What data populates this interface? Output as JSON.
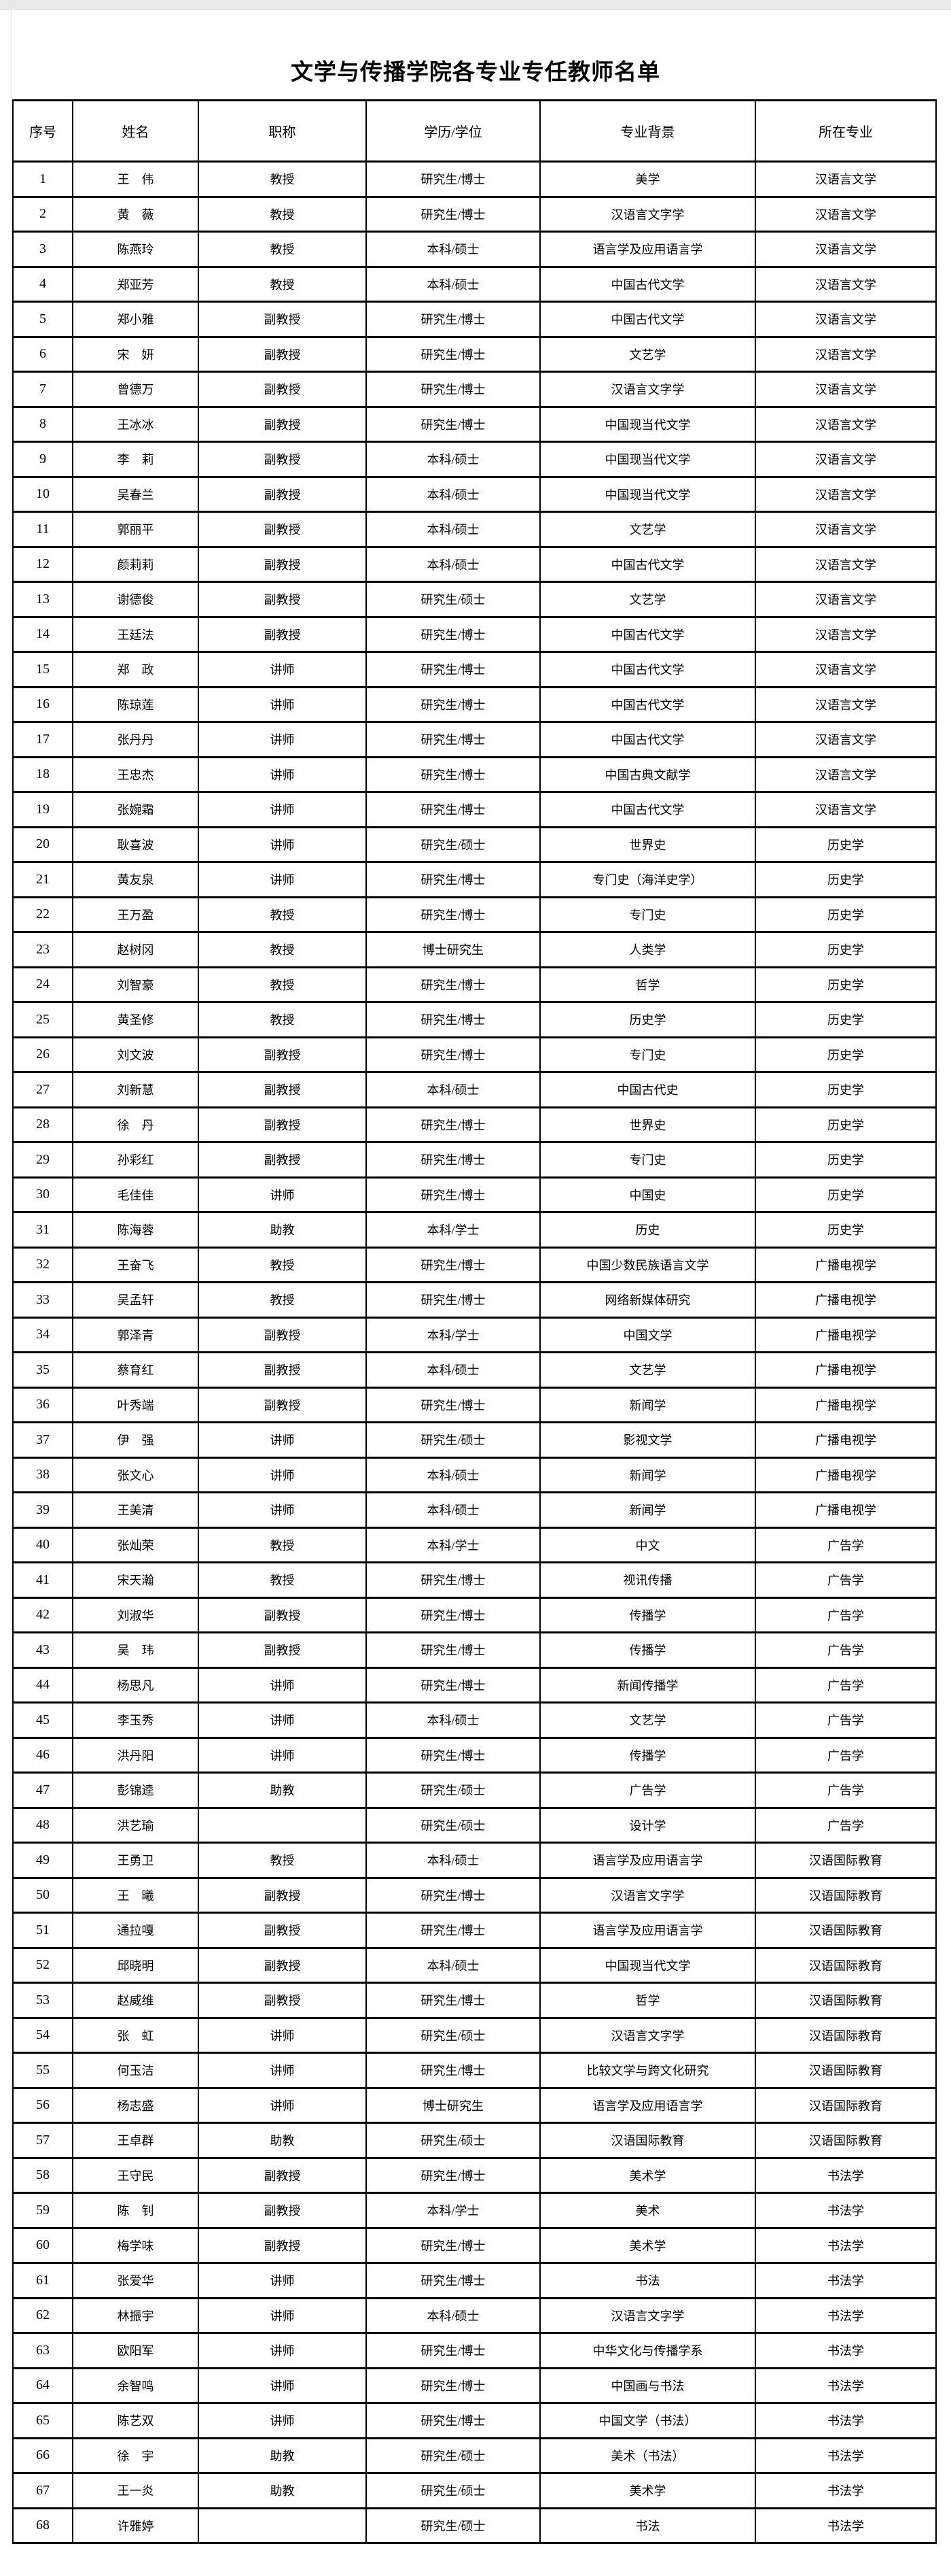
{
  "page": {
    "title": "文学与传播学院各专业专任教师名单"
  },
  "table": {
    "headers": [
      "序号",
      "姓名",
      "职称",
      "学历/学位",
      "专业背景",
      "所在专业"
    ],
    "rows": [
      [
        "1",
        "王　伟",
        "教授",
        "研究生/博士",
        "美学",
        "汉语言文学"
      ],
      [
        "2",
        "黄　薇",
        "教授",
        "研究生/博士",
        "汉语言文字学",
        "汉语言文学"
      ],
      [
        "3",
        "陈燕玲",
        "教授",
        "本科/硕士",
        "语言学及应用语言学",
        "汉语言文学"
      ],
      [
        "4",
        "郑亚芳",
        "教授",
        "本科/硕士",
        "中国古代文学",
        "汉语言文学"
      ],
      [
        "5",
        "郑小雅",
        "副教授",
        "研究生/博士",
        "中国古代文学",
        "汉语言文学"
      ],
      [
        "6",
        "宋　妍",
        "副教授",
        "研究生/博士",
        "文艺学",
        "汉语言文学"
      ],
      [
        "7",
        "曾德万",
        "副教授",
        "研究生/博士",
        "汉语言文字学",
        "汉语言文学"
      ],
      [
        "8",
        "王冰冰",
        "副教授",
        "研究生/博士",
        "中国现当代文学",
        "汉语言文学"
      ],
      [
        "9",
        "李　莉",
        "副教授",
        "本科/硕士",
        "中国现当代文学",
        "汉语言文学"
      ],
      [
        "10",
        "吴春兰",
        "副教授",
        "本科/硕士",
        "中国现当代文学",
        "汉语言文学"
      ],
      [
        "11",
        "郭丽平",
        "副教授",
        "本科/硕士",
        "文艺学",
        "汉语言文学"
      ],
      [
        "12",
        "颜莉莉",
        "副教授",
        "本科/硕士",
        "中国古代文学",
        "汉语言文学"
      ],
      [
        "13",
        "谢德俊",
        "副教授",
        "研究生/硕士",
        "文艺学",
        "汉语言文学"
      ],
      [
        "14",
        "王廷法",
        "副教授",
        "研究生/博士",
        "中国古代文学",
        "汉语言文学"
      ],
      [
        "15",
        "郑　政",
        "讲师",
        "研究生/博士",
        "中国古代文学",
        "汉语言文学"
      ],
      [
        "16",
        "陈琼莲",
        "讲师",
        "研究生/博士",
        "中国古代文学",
        "汉语言文学"
      ],
      [
        "17",
        "张丹丹",
        "讲师",
        "研究生/博士",
        "中国古代文学",
        "汉语言文学"
      ],
      [
        "18",
        "王忠杰",
        "讲师",
        "研究生/博士",
        "中国古典文献学",
        "汉语言文学"
      ],
      [
        "19",
        "张婉霜",
        "讲师",
        "研究生/博士",
        "中国古代文学",
        "汉语言文学"
      ],
      [
        "20",
        "耿喜波",
        "讲师",
        "研究生/硕士",
        "世界史",
        "历史学"
      ],
      [
        "21",
        "黄友泉",
        "讲师",
        "研究生/博士",
        "专门史（海洋史学）",
        "历史学"
      ],
      [
        "22",
        "王万盈",
        "教授",
        "研究生/博士",
        "专门史",
        "历史学"
      ],
      [
        "23",
        "赵树冈",
        "教授",
        "博士研究生",
        "人类学",
        "历史学"
      ],
      [
        "24",
        "刘智豪",
        "教授",
        "研究生/博士",
        "哲学",
        "历史学"
      ],
      [
        "25",
        "黄圣修",
        "教授",
        "研究生/博士",
        "历史学",
        "历史学"
      ],
      [
        "26",
        "刘文波",
        "副教授",
        "研究生/博士",
        "专门史",
        "历史学"
      ],
      [
        "27",
        "刘新慧",
        "副教授",
        "本科/硕士",
        "中国古代史",
        "历史学"
      ],
      [
        "28",
        "徐　丹",
        "副教授",
        "研究生/博士",
        "世界史",
        "历史学"
      ],
      [
        "29",
        "孙彩红",
        "副教授",
        "研究生/博士",
        "专门史",
        "历史学"
      ],
      [
        "30",
        "毛佳佳",
        "讲师",
        "研究生/博士",
        "中国史",
        "历史学"
      ],
      [
        "31",
        "陈海蓉",
        "助教",
        "本科/学士",
        "历史",
        "历史学"
      ],
      [
        "32",
        "王奋飞",
        "教授",
        "研究生/博士",
        "中国少数民族语言文学",
        "广播电视学"
      ],
      [
        "33",
        "吴孟轩",
        "教授",
        "研究生/博士",
        "网络新媒体研究",
        "广播电视学"
      ],
      [
        "34",
        "郭泽青",
        "副教授",
        "本科/学士",
        "中国文学",
        "广播电视学"
      ],
      [
        "35",
        "蔡育红",
        "副教授",
        "本科/硕士",
        "文艺学",
        "广播电视学"
      ],
      [
        "36",
        "叶秀端",
        "副教授",
        "研究生/博士",
        "新闻学",
        "广播电视学"
      ],
      [
        "37",
        "伊　强",
        "讲师",
        "研究生/硕士",
        "影视文学",
        "广播电视学"
      ],
      [
        "38",
        "张文心",
        "讲师",
        "本科/硕士",
        "新闻学",
        "广播电视学"
      ],
      [
        "39",
        "王美清",
        "讲师",
        "本科/硕士",
        "新闻学",
        "广播电视学"
      ],
      [
        "40",
        "张灿荣",
        "教授",
        "本科/学士",
        "中文",
        "广告学"
      ],
      [
        "41",
        "宋天瀚",
        "教授",
        "研究生/博士",
        "视讯传播",
        "广告学"
      ],
      [
        "42",
        "刘淑华",
        "副教授",
        "研究生/博士",
        "传播学",
        "广告学"
      ],
      [
        "43",
        "吴　玮",
        "副教授",
        "研究生/博士",
        "传播学",
        "广告学"
      ],
      [
        "44",
        "杨思凡",
        "讲师",
        "研究生/博士",
        "新闻传播学",
        "广告学"
      ],
      [
        "45",
        "李玉秀",
        "讲师",
        "本科/硕士",
        "文艺学",
        "广告学"
      ],
      [
        "46",
        "洪丹阳",
        "讲师",
        "研究生/博士",
        "传播学",
        "广告学"
      ],
      [
        "47",
        "彭锦逵",
        "助教",
        "研究生/硕士",
        "广告学",
        "广告学"
      ],
      [
        "48",
        "洪艺瑜",
        "",
        "研究生/硕士",
        "设计学",
        "广告学"
      ],
      [
        "49",
        "王勇卫",
        "教授",
        "本科/硕士",
        "语言学及应用语言学",
        "汉语国际教育"
      ],
      [
        "50",
        "王　曦",
        "副教授",
        "研究生/博士",
        "汉语言文字学",
        "汉语国际教育"
      ],
      [
        "51",
        "通拉嘎",
        "副教授",
        "研究生/博士",
        "语言学及应用语言学",
        "汉语国际教育"
      ],
      [
        "52",
        "邱晓明",
        "副教授",
        "本科/硕士",
        "中国现当代文学",
        "汉语国际教育"
      ],
      [
        "53",
        "赵威维",
        "副教授",
        "研究生/博士",
        "哲学",
        "汉语国际教育"
      ],
      [
        "54",
        "张　虹",
        "讲师",
        "研究生/硕士",
        "汉语言文字学",
        "汉语国际教育"
      ],
      [
        "55",
        "何玉洁",
        "讲师",
        "研究生/博士",
        "比较文学与跨文化研究",
        "汉语国际教育"
      ],
      [
        "56",
        "杨志盛",
        "讲师",
        "博士研究生",
        "语言学及应用语言学",
        "汉语国际教育"
      ],
      [
        "57",
        "王卓群",
        "助教",
        "研究生/硕士",
        "汉语国际教育",
        "汉语国际教育"
      ],
      [
        "58",
        "王守民",
        "副教授",
        "研究生/博士",
        "美术学",
        "书法学"
      ],
      [
        "59",
        "陈　钊",
        "副教授",
        "本科/学士",
        "美术",
        "书法学"
      ],
      [
        "60",
        "梅学味",
        "副教授",
        "研究生/博士",
        "美术学",
        "书法学"
      ],
      [
        "61",
        "张爱华",
        "讲师",
        "研究生/博士",
        "书法",
        "书法学"
      ],
      [
        "62",
        "林振宇",
        "讲师",
        "本科/硕士",
        "汉语言文字学",
        "书法学"
      ],
      [
        "63",
        "欧阳军",
        "讲师",
        "研究生/博士",
        "中华文化与传播学系",
        "书法学"
      ],
      [
        "64",
        "余智鸣",
        "讲师",
        "研究生/博士",
        "中国画与书法",
        "书法学"
      ],
      [
        "65",
        "陈艺双",
        "讲师",
        "研究生/博士",
        "中国文学（书法）",
        "书法学"
      ],
      [
        "66",
        "徐　宇",
        "助教",
        "研究生/硕士",
        "美术（书法）",
        "书法学"
      ],
      [
        "67",
        "王一炎",
        "助教",
        "研究生/硕士",
        "美术学",
        "书法学"
      ],
      [
        "68",
        "许雅婷",
        "",
        "研究生/硕士",
        "书法",
        "书法学"
      ]
    ]
  }
}
